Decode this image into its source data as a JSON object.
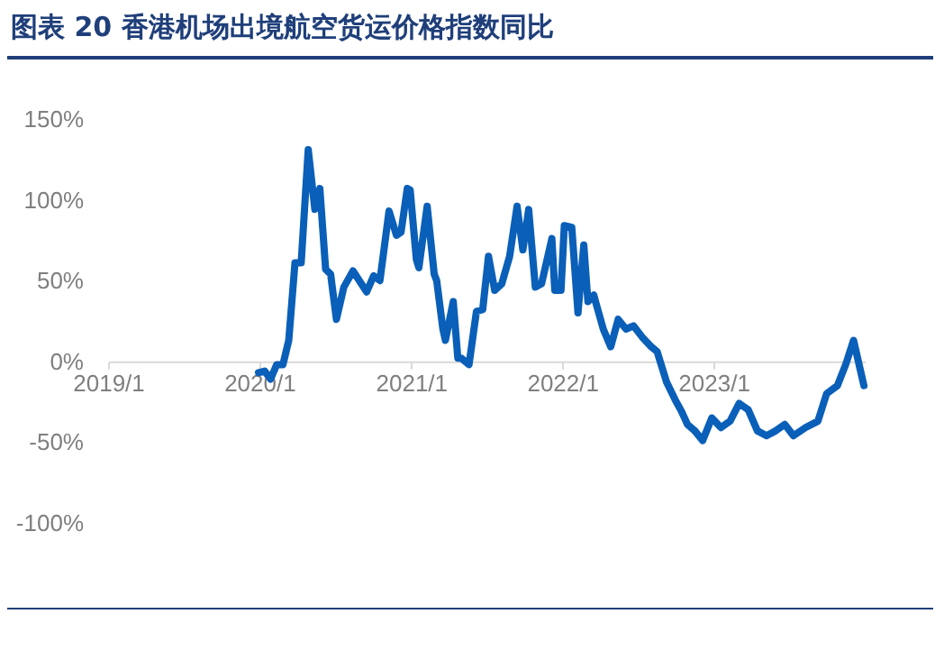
{
  "chart_data": {
    "type": "line",
    "title": "图表 20  香港机场出境航空货运价格指数同比",
    "x": [
      "2019-12-30",
      "2020-01-14",
      "2020-01-28",
      "2020-02-12",
      "2020-02-27",
      "2020-03-12",
      "2020-03-27",
      "2020-04-11",
      "2020-04-28",
      "2020-05-14",
      "2020-05-26",
      "2020-06-09",
      "2020-06-21",
      "2020-07-05",
      "2020-07-23",
      "2020-08-14",
      "2020-09-16",
      "2020-10-03",
      "2020-10-18",
      "2020-11-09",
      "2020-11-27",
      "2020-12-08",
      "2020-12-23",
      "2020-12-30",
      "2021-01-14",
      "2021-01-20",
      "2021-02-09",
      "2021-02-26",
      "2021-03-04",
      "2021-03-19",
      "2021-03-25",
      "2021-04-13",
      "2021-04-24",
      "2021-05-02",
      "2021-05-21",
      "2021-06-08",
      "2021-06-23",
      "2021-07-07",
      "2021-07-22",
      "2021-08-08",
      "2021-08-27",
      "2021-09-14",
      "2021-09-28",
      "2021-10-12",
      "2021-10-28",
      "2021-11-12",
      "2021-12-07",
      "2021-12-14",
      "2021-12-29",
      "2022-01-06",
      "2022-01-24",
      "2022-02-08",
      "2022-02-22",
      "2022-03-04",
      "2022-03-18",
      "2022-04-10",
      "2022-04-28",
      "2022-05-16",
      "2022-06-04",
      "2022-06-22",
      "2022-07-13",
      "2022-08-04",
      "2022-08-18",
      "2022-09-10",
      "2022-10-01",
      "2022-10-16",
      "2022-10-30",
      "2022-11-17",
      "2022-12-06",
      "2022-12-28",
      "2023-01-19",
      "2023-02-10",
      "2023-03-04",
      "2023-03-26",
      "2023-04-17",
      "2023-05-09",
      "2023-05-31",
      "2023-06-22",
      "2023-07-13",
      "2023-08-11",
      "2023-09-10",
      "2023-10-01",
      "2023-10-27",
      "2023-11-16",
      "2023-12-05",
      "2023-12-30"
    ],
    "series": [
      {
        "color": "#0a5fb8",
        "values": [
          -7,
          -6,
          -11,
          -2,
          -2,
          13,
          61,
          61,
          131,
          94,
          107,
          57,
          54,
          26,
          46,
          56,
          43,
          53,
          50,
          93,
          78,
          80,
          107,
          106,
          63,
          58,
          96,
          54,
          50,
          20,
          13,
          37,
          2,
          2,
          -2,
          31,
          32,
          65,
          44,
          48,
          65,
          96,
          69,
          94,
          46,
          48,
          76,
          44,
          44,
          84,
          83,
          30,
          72,
          37,
          41,
          20,
          9,
          26,
          20,
          22,
          15,
          9,
          6,
          -13,
          -24,
          -31,
          -39,
          -43,
          -49,
          -35,
          -41,
          -37,
          -26,
          -30,
          -43,
          -46,
          -43,
          -39,
          -46,
          -41,
          -37,
          -20,
          -15,
          -2,
          13,
          -15
        ]
      }
    ],
    "xlim": [
      "2019-01-01",
      "2024-01-01"
    ],
    "xticks": [
      {
        "value": "2019-01-01",
        "label": "2019/1"
      },
      {
        "value": "2020-01-01",
        "label": "2020/1"
      },
      {
        "value": "2021-01-01",
        "label": "2021/1"
      },
      {
        "value": "2022-01-01",
        "label": "2022/1"
      },
      {
        "value": "2023-01-01",
        "label": "2023/1"
      }
    ],
    "ylim": [
      -100,
      150
    ],
    "yticks": [
      {
        "value": -100,
        "label": "-100%"
      },
      {
        "value": -50,
        "label": "-50%"
      },
      {
        "value": 0,
        "label": "0%"
      },
      {
        "value": 50,
        "label": "50%"
      },
      {
        "value": 100,
        "label": "100%"
      },
      {
        "value": 150,
        "label": "150%"
      }
    ],
    "grid": false,
    "marker": "none",
    "line_style": "solid"
  }
}
